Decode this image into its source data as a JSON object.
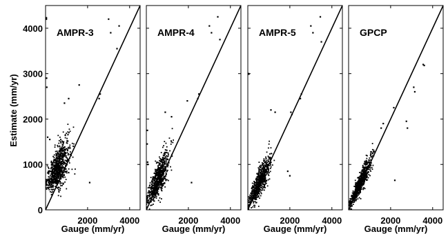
{
  "chart_data": [
    {
      "type": "scatter",
      "title": "AMPR-3",
      "xlabel": "Gauge (mm/yr)",
      "ylabel": "Estimate (mm/yr)",
      "xlim": [
        0,
        4500
      ],
      "ylim": [
        0,
        4500
      ],
      "x_ticks": [
        "2000",
        "4000"
      ],
      "y_ticks": [
        "0",
        "1000",
        "2000",
        "3000",
        "4000"
      ],
      "reference_line": "1:1",
      "outliers": [
        {
          "x": 40,
          "y": 4230
        },
        {
          "x": 40,
          "y": 4200
        },
        {
          "x": 50,
          "y": 2900
        },
        {
          "x": 60,
          "y": 2700
        },
        {
          "x": 3000,
          "y": 4200
        },
        {
          "x": 3100,
          "y": 3900
        },
        {
          "x": 3500,
          "y": 4050
        },
        {
          "x": 3400,
          "y": 3550
        },
        {
          "x": 2600,
          "y": 2550
        },
        {
          "x": 2550,
          "y": 2450
        },
        {
          "x": 1600,
          "y": 2750
        },
        {
          "x": 2100,
          "y": 600
        },
        {
          "x": 1100,
          "y": 2450
        },
        {
          "x": 900,
          "y": 2350
        },
        {
          "x": 100,
          "y": 1600
        },
        {
          "x": 200,
          "y": 1550
        }
      ],
      "cloud": {
        "n": 780,
        "x_center": 600,
        "x_spread": 450,
        "y_intercept": 520,
        "slope": 0.7,
        "y_spread": 220
      }
    },
    {
      "type": "scatter",
      "title": "AMPR-4",
      "xlabel": "Gauge (mm/yr)",
      "xlim": [
        0,
        4500
      ],
      "ylim": [
        0,
        4500
      ],
      "x_ticks": [
        "2000",
        "4000"
      ],
      "reference_line": "1:1",
      "outliers": [
        {
          "x": 50,
          "y": 1750
        },
        {
          "x": 40,
          "y": 1450
        },
        {
          "x": 60,
          "y": 1050
        },
        {
          "x": 70,
          "y": 1000
        },
        {
          "x": 3000,
          "y": 4050
        },
        {
          "x": 3100,
          "y": 3900
        },
        {
          "x": 3400,
          "y": 4250
        },
        {
          "x": 3500,
          "y": 3750
        },
        {
          "x": 2500,
          "y": 2550
        },
        {
          "x": 2450,
          "y": 2450
        },
        {
          "x": 1950,
          "y": 2400
        },
        {
          "x": 2150,
          "y": 600
        },
        {
          "x": 900,
          "y": 2150
        },
        {
          "x": 1200,
          "y": 2050
        }
      ],
      "cloud": {
        "n": 700,
        "x_center": 550,
        "x_spread": 420,
        "y_intercept": 200,
        "slope": 0.85,
        "y_spread": 180
      }
    },
    {
      "type": "scatter",
      "title": "AMPR-5",
      "xlabel": "Gauge (mm/yr)",
      "xlim": [
        0,
        4500
      ],
      "ylim": [
        0,
        4500
      ],
      "x_ticks": [
        "2000",
        "4000"
      ],
      "reference_line": "1:1",
      "outliers": [
        {
          "x": 40,
          "y": 3000
        },
        {
          "x": 50,
          "y": 2990
        },
        {
          "x": 3000,
          "y": 4050
        },
        {
          "x": 3100,
          "y": 3900
        },
        {
          "x": 3450,
          "y": 4250
        },
        {
          "x": 3500,
          "y": 3700
        },
        {
          "x": 2550,
          "y": 2550
        },
        {
          "x": 2500,
          "y": 2450
        },
        {
          "x": 2050,
          "y": 2150
        },
        {
          "x": 2100,
          "y": 2100
        },
        {
          "x": 1900,
          "y": 850
        },
        {
          "x": 2000,
          "y": 750
        },
        {
          "x": 1100,
          "y": 2200
        },
        {
          "x": 1300,
          "y": 2150
        }
      ],
      "cloud": {
        "n": 700,
        "x_center": 550,
        "x_spread": 420,
        "y_intercept": 100,
        "slope": 0.9,
        "y_spread": 150
      }
    },
    {
      "type": "scatter",
      "title": "GPCP",
      "xlabel": "Gauge (mm/yr)",
      "xlim": [
        0,
        4500
      ],
      "ylim": [
        0,
        4500
      ],
      "x_ticks": [
        "2000",
        "4000"
      ],
      "reference_line": "1:1",
      "outliers": [
        {
          "x": 3550,
          "y": 3200
        },
        {
          "x": 3600,
          "y": 3180
        },
        {
          "x": 3100,
          "y": 2700
        },
        {
          "x": 3150,
          "y": 2600
        },
        {
          "x": 2750,
          "y": 1950
        },
        {
          "x": 2800,
          "y": 1800
        },
        {
          "x": 2150,
          "y": 2250
        },
        {
          "x": 2200,
          "y": 650
        },
        {
          "x": 1650,
          "y": 1900
        },
        {
          "x": 1550,
          "y": 1800
        }
      ],
      "cloud": {
        "n": 720,
        "x_center": 550,
        "x_spread": 420,
        "y_intercept": 60,
        "slope": 0.95,
        "y_spread": 110
      }
    }
  ]
}
